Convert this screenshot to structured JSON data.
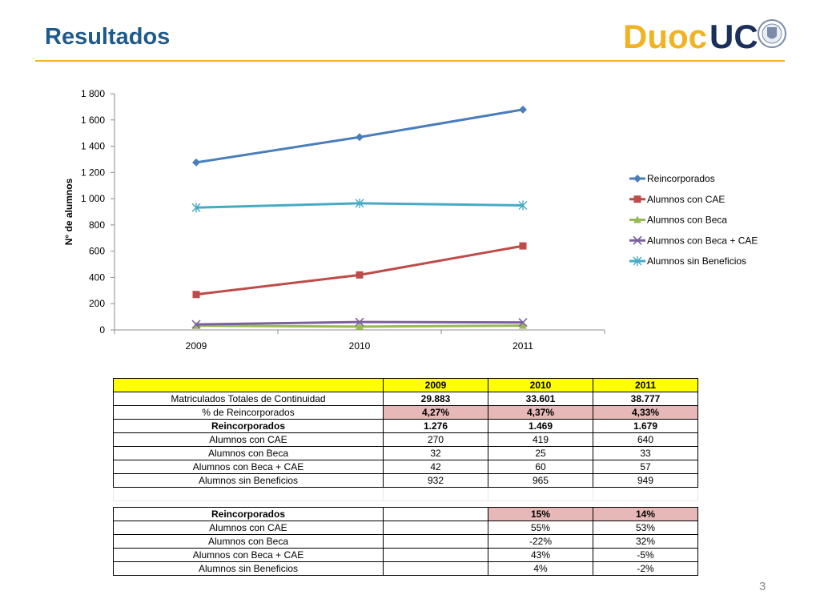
{
  "slide": {
    "title": "Resultados",
    "page_number": "3"
  },
  "logo": {
    "text_duoc": "Duoc",
    "text_uc": "UC",
    "color_duoc": "#f0b323",
    "color_uc": "#1a2f5a"
  },
  "chart_data": {
    "type": "line",
    "x": [
      "2009",
      "2010",
      "2011"
    ],
    "ylabel": "N° de alumnos",
    "xlabel": "",
    "ylim": [
      0,
      1800
    ],
    "yticks": [
      0,
      200,
      400,
      600,
      800,
      1000,
      1200,
      1400,
      1600,
      1800
    ],
    "ytick_labels": [
      "0",
      "200",
      "400",
      "600",
      "800",
      "1 000",
      "1 200",
      "1 400",
      "1 600",
      "1 800"
    ],
    "grid": false,
    "legend_position": "right",
    "series": [
      {
        "name": "Reincorporados",
        "values": [
          1276,
          1469,
          1679
        ],
        "color": "#4a7ebb",
        "marker": "diamond"
      },
      {
        "name": "Alumnos con CAE",
        "values": [
          270,
          419,
          640
        ],
        "color": "#be4b48",
        "marker": "square"
      },
      {
        "name": "Alumnos con Beca",
        "values": [
          32,
          25,
          33
        ],
        "color": "#98b954",
        "marker": "triangle"
      },
      {
        "name": "Alumnos con Beca + CAE",
        "values": [
          42,
          60,
          57
        ],
        "color": "#7d60a0",
        "marker": "x"
      },
      {
        "name": "Alumnos sin Beneficios",
        "values": [
          932,
          965,
          949
        ],
        "color": "#46aac5",
        "marker": "asterisk"
      }
    ]
  },
  "table1": {
    "header": [
      "",
      "2009",
      "2010",
      "2011"
    ],
    "rows": [
      [
        "Matriculados Totales de Continuidad",
        "29.883",
        "33.601",
        "38.777"
      ],
      [
        "% de Reincorporados",
        "4,27%",
        "4,37%",
        "4,33%"
      ],
      [
        "Reincorporados",
        "1.276",
        "1.469",
        "1.679"
      ],
      [
        "Alumnos con CAE",
        "270",
        "419",
        "640"
      ],
      [
        "Alumnos con Beca",
        "32",
        "25",
        "33"
      ],
      [
        "Alumnos con Beca + CAE",
        "42",
        "60",
        "57"
      ],
      [
        "Alumnos sin Beneficios",
        "932",
        "965",
        "949"
      ]
    ]
  },
  "table2": {
    "rows": [
      [
        "Reincorporados",
        "",
        "15%",
        "14%"
      ],
      [
        "Alumnos con CAE",
        "",
        "55%",
        "53%"
      ],
      [
        "Alumnos con Beca",
        "",
        "-22%",
        "32%"
      ],
      [
        "Alumnos con Beca + CAE",
        "",
        "43%",
        "-5%"
      ],
      [
        "Alumnos sin Beneficios",
        "",
        "4%",
        "-2%"
      ]
    ]
  }
}
